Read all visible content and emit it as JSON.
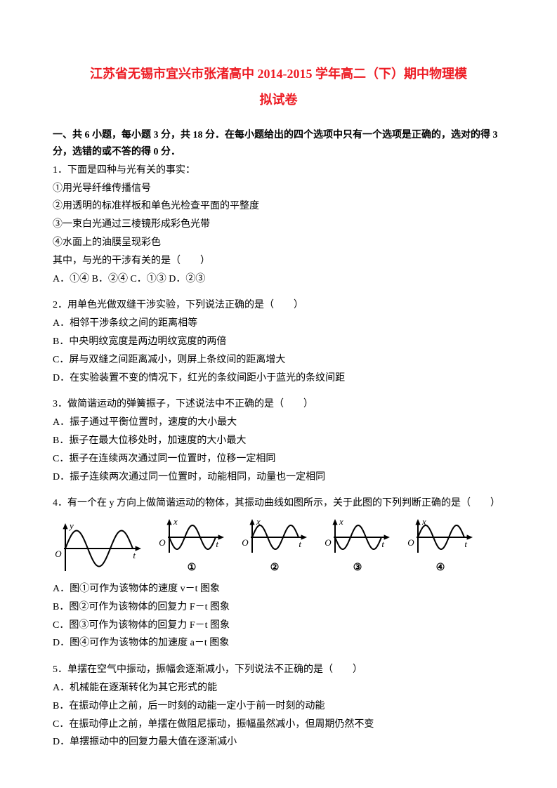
{
  "colors": {
    "title": "#ed1c24",
    "text": "#000000",
    "bg": "#ffffff",
    "axis": "#000000",
    "wave": "#000000"
  },
  "title_line1": "江苏省无锡市宜兴市张渚高中 2014-2015 学年高二（下）期中物理模",
  "title_line2": "拟试卷",
  "section1": "一、共 6 小题，每小题 3 分，共 18 分．在每小题给出的四个选项中只有一个选项是正确的，选对的得 3 分，选错的或不答的得 0 分．",
  "q1": {
    "stem": "1．下面是四种与光有关的事实：",
    "l1": "①用光导纤维传播信号",
    "l2": "②用透明的标准样板和单色光检查平面的平整度",
    "l3": "③一束白光通过三棱镜形成彩色光带",
    "l4": "④水面上的油膜呈现彩色",
    "ask": "其中，与光的干涉有关的是（　　）",
    "opts": "A．①④  B．②④  C．①③  D．②③"
  },
  "q2": {
    "stem": "2．用单色光做双缝干涉实验，下列说法正确的是（　　）",
    "a": "A．相邻干涉条纹之间的距离相等",
    "b": "B．中央明纹宽度是两边明纹宽度的两倍",
    "c": "C．屏与双缝之间距离减小，则屏上条纹间的距离增大",
    "d": "D．在实验装置不变的情况下，红光的条纹间距小于蓝光的条纹间距"
  },
  "q3": {
    "stem": "3．做简谐运动的弹簧振子，下述说法中不正确的是（　　）",
    "a": "A．振子通过平衡位置时，速度的大小最大",
    "b": "B．振子在最大位移处时，加速度的大小最大",
    "c": "C．振子在连续两次通过同一位置时，位移一定相同",
    "d": "D．振子连续两次通过同一位置时，动能相同，动量也一定相同"
  },
  "q4": {
    "stem": "4．有一个在 y 方向上做简谐运动的物体，其振动曲线如图所示，关于此图的下列判断正确的是（　　）",
    "labels": [
      "①",
      "②",
      "③",
      "④"
    ],
    "axis_y_main": "y",
    "axis_y_sub": "x",
    "axis_x": "t",
    "origin": "O",
    "a": "A．图①可作为该物体的速度 v－t 图象",
    "b": "B．图②可作为该物体的回复力 F－t 图象",
    "c": "C．图③可作为该物体的回复力 F－t 图象",
    "d": "D．图④可作为该物体的加速度 a－t 图象"
  },
  "q5": {
    "stem": "5．单摆在空气中振动，振幅会逐渐减小，下列说法不正确的是（　　）",
    "a": "A．机械能在逐渐转化为其它形式的能",
    "b": "B．在振动停止之前，后一时刻的动能一定小于前一时刻的动能",
    "c": "C．在振动停止之前，单摆在做阻尼振动，振幅虽然减小，但周期仍然不变",
    "d": "D．单摆振动中的回复力最大值在逐渐减小"
  },
  "charts": {
    "main": {
      "width": 130,
      "height": 80,
      "phase": "sin_up",
      "periods": 1.5,
      "y_pos": "center"
    },
    "subs": [
      {
        "width": 100,
        "height": 60,
        "phase": "neg_sin",
        "periods": 1.5
      },
      {
        "width": 100,
        "height": 60,
        "phase": "sin_up",
        "periods": 1.5
      },
      {
        "width": 100,
        "height": 60,
        "phase": "neg_sin",
        "periods": 1.5
      },
      {
        "width": 100,
        "height": 60,
        "phase": "sin_up",
        "periods": 1.5
      }
    ],
    "stroke_width": 2,
    "arrow_size": 6
  }
}
